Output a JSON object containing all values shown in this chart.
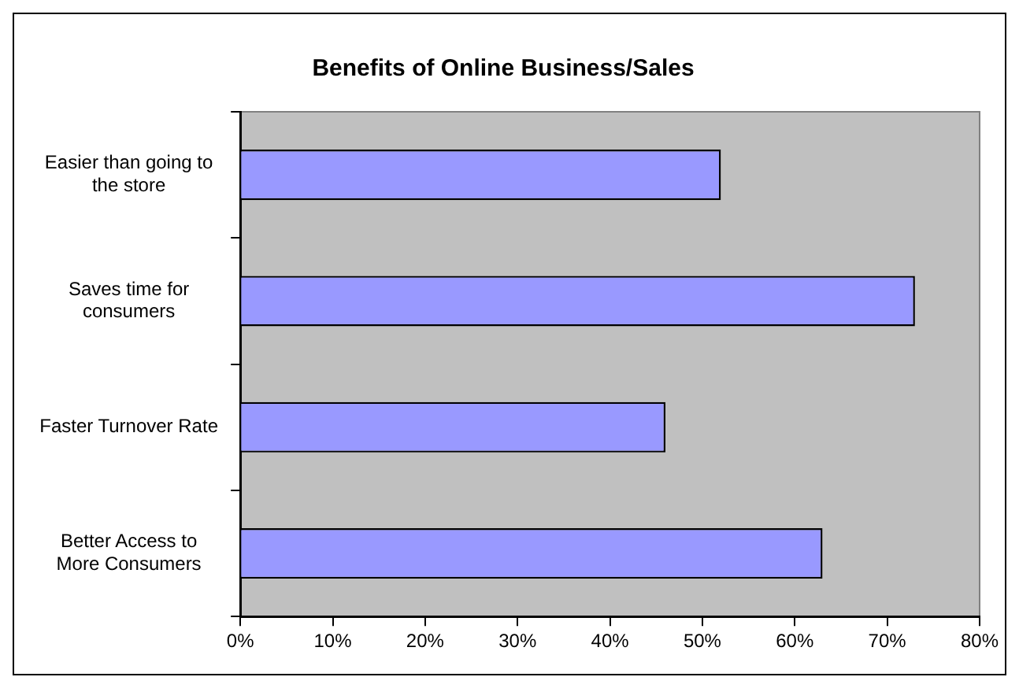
{
  "chart_data": {
    "type": "bar",
    "orientation": "horizontal",
    "title": "Benefits of Online Business/Sales",
    "categories": [
      "Easier than going to the store",
      "Saves time for consumers",
      "Faster Turnover Rate",
      "Better Access to More Consumers"
    ],
    "values": [
      52,
      73,
      46,
      63
    ],
    "color": "#9999ff",
    "xlim": [
      0,
      80
    ],
    "xticks": [
      {
        "value": 0,
        "label": "0%"
      },
      {
        "value": 10,
        "label": "10%"
      },
      {
        "value": 20,
        "label": "20%"
      },
      {
        "value": 30,
        "label": "30%"
      },
      {
        "value": 40,
        "label": "40%"
      },
      {
        "value": 50,
        "label": "50%"
      },
      {
        "value": 60,
        "label": "60%"
      },
      {
        "value": 70,
        "label": "70%"
      },
      {
        "value": 80,
        "label": "80%"
      }
    ],
    "grid": false,
    "legend": false
  }
}
